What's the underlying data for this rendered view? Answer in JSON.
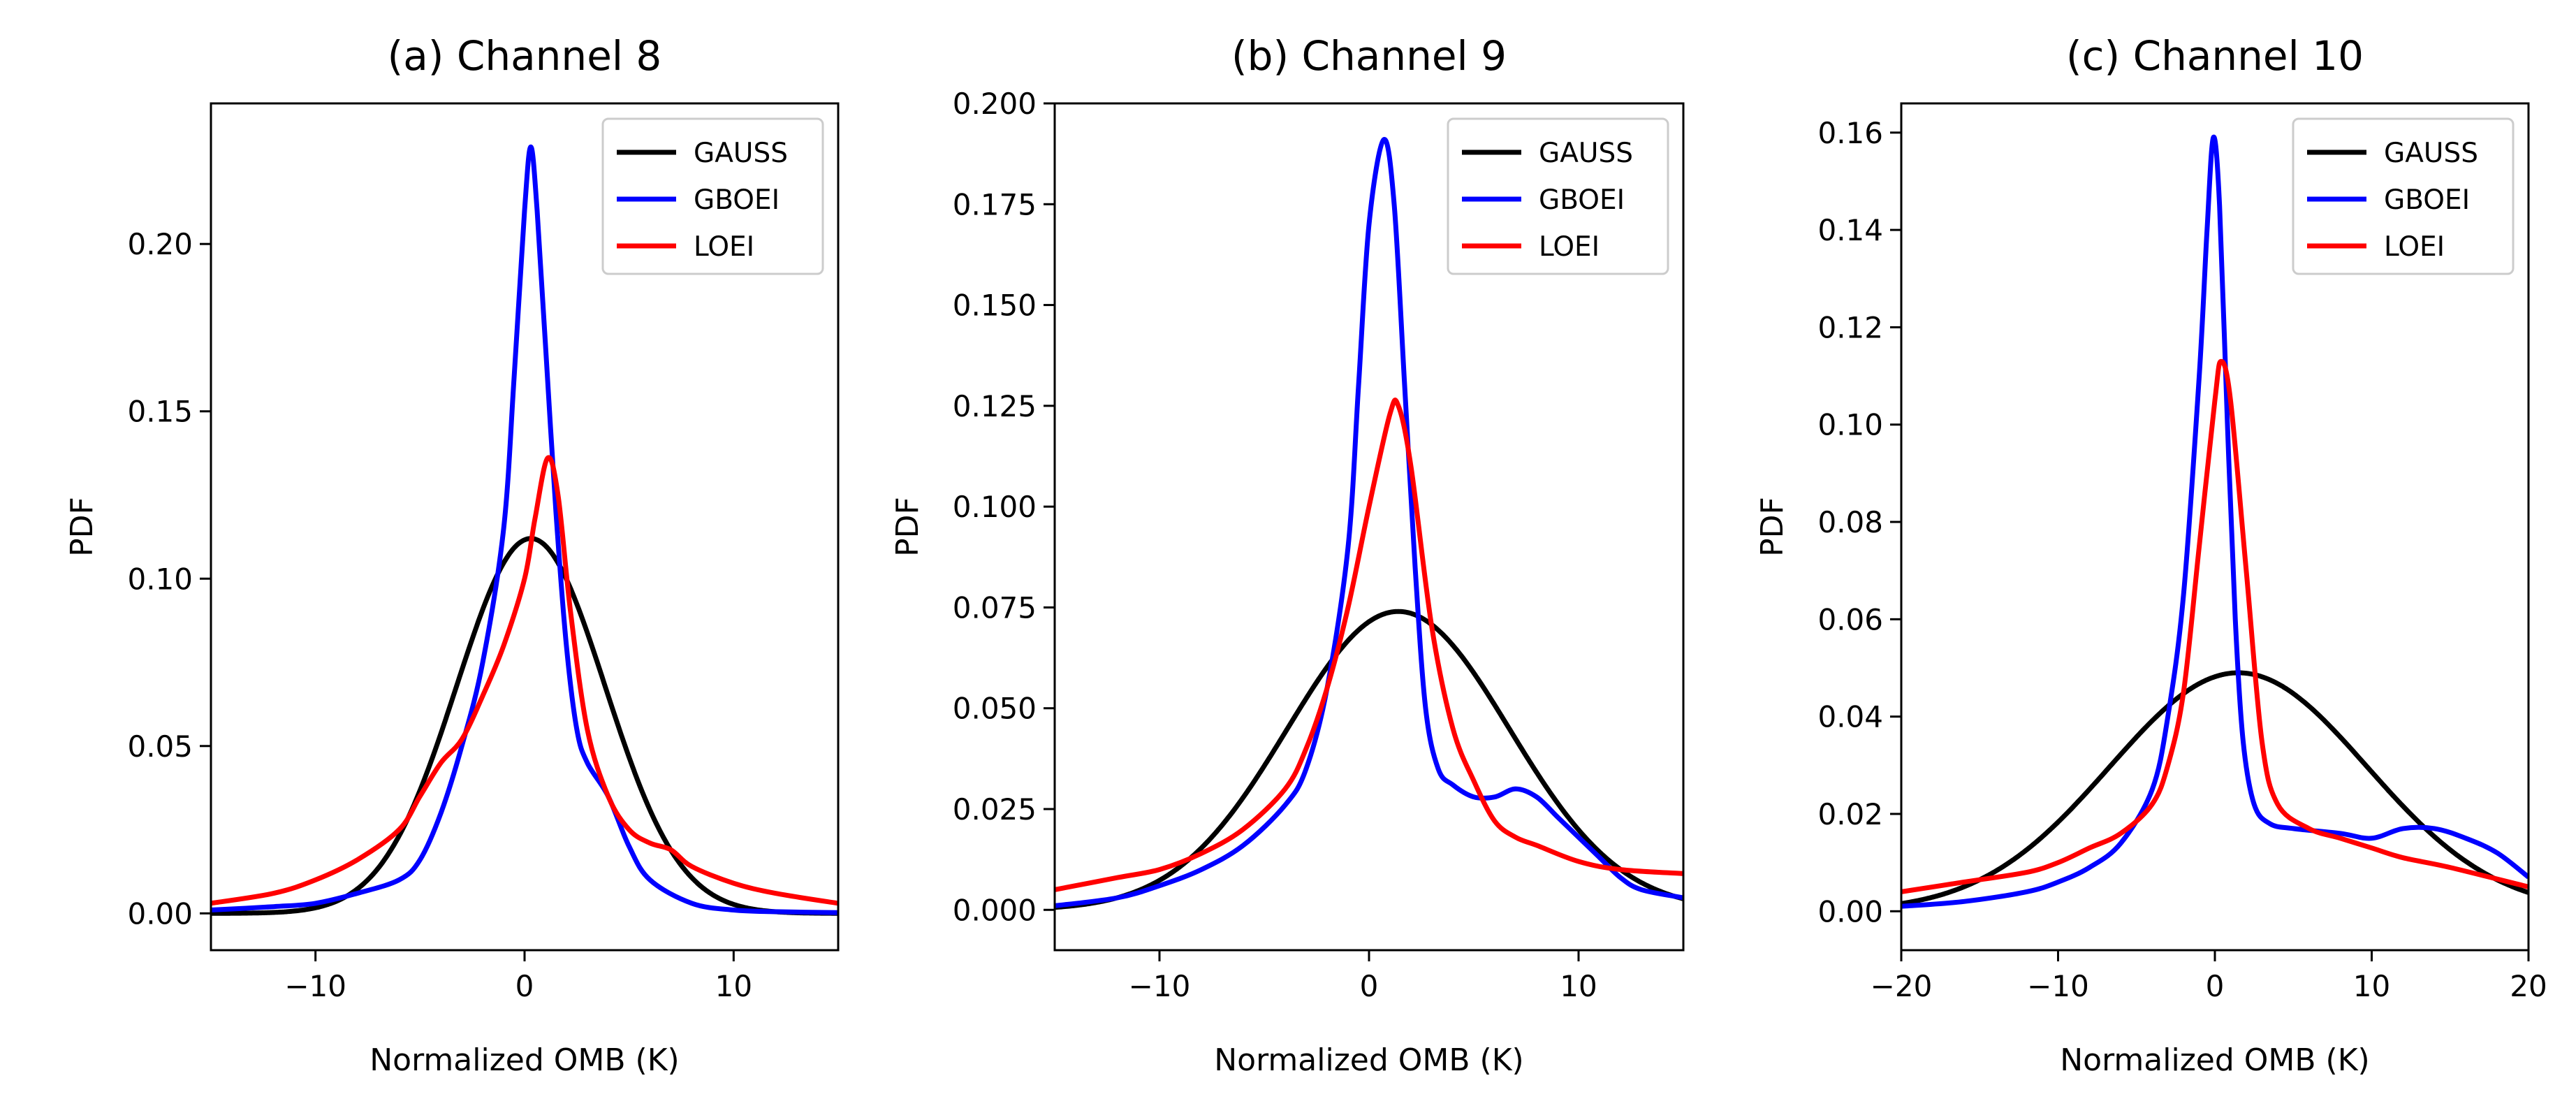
{
  "chart_data": [
    {
      "type": "line",
      "title": "(a) Channel 8",
      "xlabel": "Normalized OMB (K)",
      "ylabel": "PDF",
      "xlim": [
        -15,
        15
      ],
      "ylim": [
        -0.011,
        0.242
      ],
      "xticks": [
        -10,
        0,
        10
      ],
      "xtick_labels": [
        "−10",
        "0",
        "10"
      ],
      "yticks": [
        0.0,
        0.05,
        0.1,
        0.15,
        0.2
      ],
      "ytick_labels": [
        "0.00",
        "0.05",
        "0.10",
        "0.15",
        "0.20"
      ],
      "legend": "top-right",
      "series": [
        {
          "name": "GAUSS",
          "color": "#000000",
          "gauss": {
            "mu": 0.3,
            "sigma": 3.55,
            "peak": 0.112
          }
        },
        {
          "name": "GBOEI",
          "color": "#0000ff",
          "points": [
            [
              -15,
              0.001
            ],
            [
              -12,
              0.002
            ],
            [
              -10,
              0.003
            ],
            [
              -8,
              0.006
            ],
            [
              -6,
              0.01
            ],
            [
              -5,
              0.016
            ],
            [
              -4,
              0.03
            ],
            [
              -3,
              0.05
            ],
            [
              -2,
              0.075
            ],
            [
              -1,
              0.115
            ],
            [
              -0.5,
              0.16
            ],
            [
              0,
              0.21
            ],
            [
              0.3,
              0.229
            ],
            [
              0.6,
              0.21
            ],
            [
              1,
              0.17
            ],
            [
              1.5,
              0.12
            ],
            [
              2,
              0.08
            ],
            [
              2.5,
              0.055
            ],
            [
              3,
              0.045
            ],
            [
              4,
              0.035
            ],
            [
              5,
              0.02
            ],
            [
              6,
              0.01
            ],
            [
              8,
              0.003
            ],
            [
              10,
              0.001
            ],
            [
              12,
              0.0005
            ],
            [
              15,
              0.0002
            ]
          ]
        },
        {
          "name": "LOEI",
          "color": "#ff0000",
          "points": [
            [
              -15,
              0.003
            ],
            [
              -12,
              0.006
            ],
            [
              -10,
              0.01
            ],
            [
              -8,
              0.016
            ],
            [
              -6,
              0.025
            ],
            [
              -5,
              0.035
            ],
            [
              -4,
              0.045
            ],
            [
              -3,
              0.052
            ],
            [
              -2,
              0.065
            ],
            [
              -1,
              0.08
            ],
            [
              0,
              0.1
            ],
            [
              0.5,
              0.118
            ],
            [
              1.1,
              0.136
            ],
            [
              1.6,
              0.125
            ],
            [
              2.2,
              0.09
            ],
            [
              3,
              0.055
            ],
            [
              4,
              0.035
            ],
            [
              5,
              0.025
            ],
            [
              6,
              0.021
            ],
            [
              7,
              0.019
            ],
            [
              8,
              0.014
            ],
            [
              10,
              0.009
            ],
            [
              12,
              0.006
            ],
            [
              15,
              0.003
            ]
          ]
        }
      ]
    },
    {
      "type": "line",
      "title": "(b) Channel 9",
      "xlabel": "Normalized OMB (K)",
      "ylabel": "PDF",
      "xlim": [
        -15,
        15
      ],
      "ylim": [
        -0.01,
        0.2
      ],
      "xticks": [
        -10,
        0,
        10
      ],
      "xtick_labels": [
        "−10",
        "0",
        "10"
      ],
      "yticks": [
        0.0,
        0.025,
        0.05,
        0.075,
        0.1,
        0.125,
        0.15,
        0.175,
        0.2
      ],
      "ytick_labels": [
        "0.000",
        "0.025",
        "0.050",
        "0.075",
        "0.100",
        "0.125",
        "0.150",
        "0.175",
        "0.200"
      ],
      "legend": "top-right",
      "series": [
        {
          "name": "GAUSS",
          "color": "#000000",
          "gauss": {
            "mu": 1.4,
            "sigma": 5.3,
            "peak": 0.074
          }
        },
        {
          "name": "GBOEI",
          "color": "#0000ff",
          "points": [
            [
              -15,
              0.001
            ],
            [
              -12,
              0.003
            ],
            [
              -10,
              0.006
            ],
            [
              -8,
              0.01
            ],
            [
              -6,
              0.016
            ],
            [
              -4,
              0.026
            ],
            [
              -3,
              0.035
            ],
            [
              -2,
              0.055
            ],
            [
              -1,
              0.09
            ],
            [
              -0.5,
              0.13
            ],
            [
              0,
              0.17
            ],
            [
              0.7,
              0.191
            ],
            [
              1.2,
              0.175
            ],
            [
              1.7,
              0.13
            ],
            [
              2.2,
              0.085
            ],
            [
              2.7,
              0.05
            ],
            [
              3.3,
              0.035
            ],
            [
              4,
              0.031
            ],
            [
              5,
              0.028
            ],
            [
              6,
              0.028
            ],
            [
              7,
              0.03
            ],
            [
              8,
              0.028
            ],
            [
              9,
              0.023
            ],
            [
              10,
              0.018
            ],
            [
              11,
              0.013
            ],
            [
              12,
              0.008
            ],
            [
              13,
              0.005
            ],
            [
              15,
              0.003
            ]
          ]
        },
        {
          "name": "LOEI",
          "color": "#ff0000",
          "points": [
            [
              -15,
              0.005
            ],
            [
              -12,
              0.008
            ],
            [
              -10,
              0.01
            ],
            [
              -8,
              0.014
            ],
            [
              -6,
              0.02
            ],
            [
              -4,
              0.03
            ],
            [
              -3,
              0.04
            ],
            [
              -2,
              0.055
            ],
            [
              -1,
              0.075
            ],
            [
              0,
              0.1
            ],
            [
              1,
              0.123
            ],
            [
              1.4,
              0.125
            ],
            [
              2,
              0.11
            ],
            [
              3,
              0.07
            ],
            [
              4,
              0.045
            ],
            [
              5,
              0.032
            ],
            [
              6,
              0.022
            ],
            [
              7,
              0.018
            ],
            [
              8,
              0.016
            ],
            [
              10,
              0.012
            ],
            [
              12,
              0.01
            ],
            [
              15,
              0.009
            ]
          ]
        }
      ]
    },
    {
      "type": "line",
      "title": "(c) Channel 10",
      "xlabel": "Normalized OMB (K)",
      "ylabel": "PDF",
      "xlim": [
        -20,
        20
      ],
      "ylim": [
        -0.008,
        0.166
      ],
      "xticks": [
        -20,
        -10,
        0,
        10,
        20
      ],
      "xtick_labels": [
        "−20",
        "−10",
        "0",
        "10",
        "20"
      ],
      "yticks": [
        0.0,
        0.02,
        0.04,
        0.06,
        0.08,
        0.1,
        0.12,
        0.14,
        0.16
      ],
      "ytick_labels": [
        "0.00",
        "0.02",
        "0.04",
        "0.06",
        "0.08",
        "0.10",
        "0.12",
        "0.14",
        "0.16"
      ],
      "legend": "top-right",
      "series": [
        {
          "name": "GAUSS",
          "color": "#000000",
          "gauss": {
            "mu": 1.5,
            "sigma": 8.2,
            "peak": 0.049
          }
        },
        {
          "name": "GBOEI",
          "color": "#0000ff",
          "points": [
            [
              -20,
              0.001
            ],
            [
              -16,
              0.002
            ],
            [
              -12,
              0.004
            ],
            [
              -10,
              0.006
            ],
            [
              -8,
              0.009
            ],
            [
              -6,
              0.014
            ],
            [
              -4,
              0.025
            ],
            [
              -3,
              0.04
            ],
            [
              -2,
              0.065
            ],
            [
              -1,
              0.11
            ],
            [
              -0.5,
              0.14
            ],
            [
              -0.1,
              0.159
            ],
            [
              0.3,
              0.145
            ],
            [
              0.8,
              0.1
            ],
            [
              1.3,
              0.06
            ],
            [
              1.8,
              0.035
            ],
            [
              2.5,
              0.022
            ],
            [
              3.5,
              0.018
            ],
            [
              5,
              0.017
            ],
            [
              8,
              0.016
            ],
            [
              10,
              0.015
            ],
            [
              12,
              0.017
            ],
            [
              14,
              0.017
            ],
            [
              16,
              0.015
            ],
            [
              18,
              0.012
            ],
            [
              20,
              0.007
            ]
          ]
        },
        {
          "name": "LOEI",
          "color": "#ff0000",
          "points": [
            [
              -20,
              0.004
            ],
            [
              -16,
              0.006
            ],
            [
              -12,
              0.008
            ],
            [
              -10,
              0.01
            ],
            [
              -8,
              0.013
            ],
            [
              -6,
              0.016
            ],
            [
              -4,
              0.022
            ],
            [
              -3,
              0.03
            ],
            [
              -2,
              0.045
            ],
            [
              -1,
              0.075
            ],
            [
              0,
              0.105
            ],
            [
              0.4,
              0.113
            ],
            [
              1,
              0.105
            ],
            [
              2,
              0.07
            ],
            [
              3,
              0.035
            ],
            [
              4,
              0.022
            ],
            [
              6,
              0.017
            ],
            [
              8,
              0.015
            ],
            [
              10,
              0.013
            ],
            [
              12,
              0.011
            ],
            [
              15,
              0.009
            ],
            [
              20,
              0.005
            ]
          ]
        }
      ]
    }
  ]
}
